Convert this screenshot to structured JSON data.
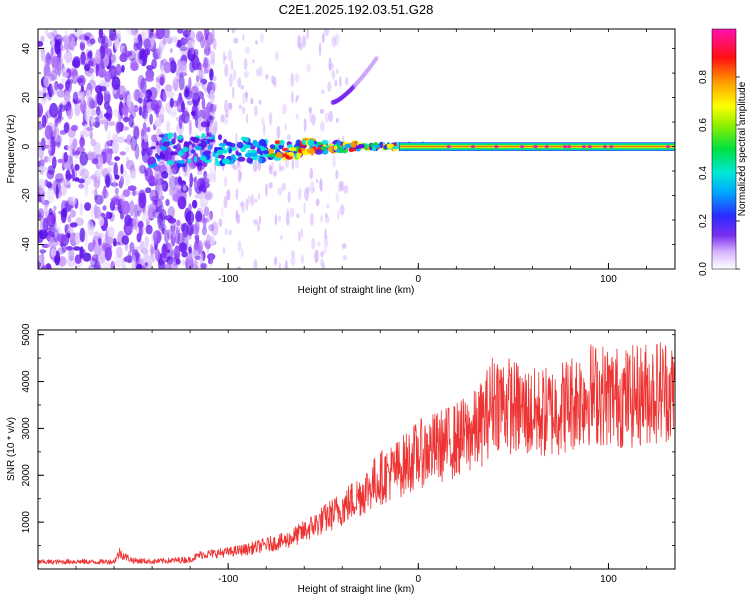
{
  "title": "C2E1.2025.192.03.51.G28",
  "chart_data": [
    {
      "type": "heatmap",
      "xlabel": "Height of straight line (km)",
      "ylabel": "Frequency (Hz)",
      "xlim": [
        -200,
        135
      ],
      "ylim": [
        -50,
        48
      ],
      "x_ticks": [
        -100,
        0,
        100
      ],
      "y_ticks": [
        -40,
        -20,
        0,
        20,
        40
      ],
      "colorbar": {
        "label": "Normalized spectral amplitude",
        "range": [
          0,
          1
        ],
        "ticks": [
          "0.0",
          "0.2",
          "0.4",
          "0.6",
          "0.8"
        ]
      },
      "features": {
        "noise_region_x": [
          -200,
          -115
        ],
        "signal_trace_x": [
          -140,
          135
        ],
        "signal_frequency_hz": 0,
        "strong_line_x": [
          -10,
          135
        ],
        "doppler_arc": {
          "x": [
            -45,
            -22
          ],
          "freq_hz": [
            18,
            36
          ]
        }
      }
    },
    {
      "type": "line",
      "xlabel": "Height of straight line (km)",
      "ylabel": "SNR (10 * v/v)",
      "xlim": [
        -200,
        135
      ],
      "ylim": [
        0,
        5100
      ],
      "x_ticks": [
        -100,
        0,
        100
      ],
      "y_ticks": [
        1000,
        2000,
        3000,
        4000,
        5000
      ],
      "color": "#ee3333",
      "series": [
        {
          "x": [
            -200,
            -190,
            -180,
            -170,
            -160,
            -157,
            -154,
            -150,
            -140,
            -130,
            -120,
            -115,
            -110,
            -100,
            -90,
            -80,
            -70,
            -60,
            -50,
            -40,
            -30,
            -20,
            -10,
            0,
            10,
            20,
            30,
            35,
            40,
            50,
            60,
            70,
            80,
            90,
            100,
            110,
            120,
            130,
            135
          ],
          "y": [
            150,
            150,
            160,
            150,
            160,
            350,
            260,
            180,
            160,
            180,
            200,
            300,
            320,
            360,
            420,
            520,
            600,
            800,
            1050,
            1300,
            1600,
            1950,
            2150,
            2450,
            2600,
            2750,
            2950,
            3200,
            3650,
            3450,
            3300,
            3350,
            3550,
            3750,
            3700,
            3650,
            3750,
            3850,
            3700
          ]
        }
      ]
    }
  ]
}
